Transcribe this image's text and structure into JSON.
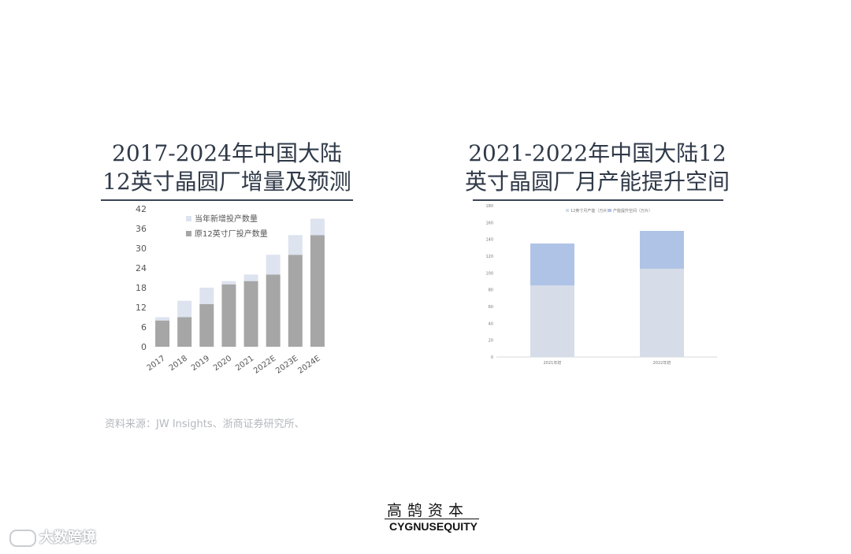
{
  "source_note": "资料来源：JW Insights、浙商证券研究所、",
  "logo": {
    "cn": "高鹄资本",
    "en": "CYGNUSEQUITY"
  },
  "watermark": "大数跨境",
  "colors": {
    "base_bar": "#a6a6a6",
    "new_bar": "#dde3ef",
    "base_bar2": "#d6dde8",
    "new_bar2": "#afc3e6"
  },
  "chart_data": [
    {
      "type": "bar",
      "stacked": true,
      "title": "2017-2024年中国大陆12英寸晶圆厂增量及预测",
      "categories": [
        "2017",
        "2018",
        "2019",
        "2020",
        "2021",
        "2022E",
        "2023E",
        "2024E"
      ],
      "series": [
        {
          "name": "原12英寸厂投产数量",
          "values": [
            8,
            9,
            13,
            19,
            20,
            22,
            28,
            34
          ]
        },
        {
          "name": "当年新增投产数量",
          "values": [
            1,
            5,
            5,
            1,
            2,
            6,
            6,
            5
          ]
        }
      ],
      "yticks": [
        "0",
        "6",
        "12",
        "18",
        "24",
        "30",
        "36",
        "42"
      ],
      "ylim": [
        0,
        42
      ],
      "legend": "top-left",
      "grid": false
    },
    {
      "type": "bar",
      "stacked": true,
      "title": "2021-2022年中国大陆12英寸晶圆厂月产能提升空间",
      "categories": [
        "2021年初",
        "2022年初"
      ],
      "series": [
        {
          "name": "12英寸月产能（万片）",
          "values": [
            85,
            105
          ]
        },
        {
          "name": "产能提升空间（万片）",
          "values": [
            50,
            45
          ]
        }
      ],
      "yticks": [
        "0",
        "20",
        "40",
        "60",
        "80",
        "100",
        "120",
        "140",
        "160",
        "180"
      ],
      "ylim": [
        0,
        180
      ],
      "legend": "top-center",
      "grid": false
    }
  ]
}
